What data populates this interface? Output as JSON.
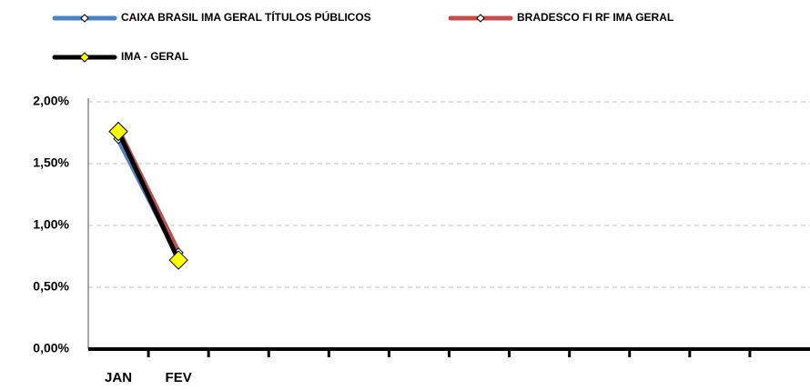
{
  "chart_data": {
    "type": "line",
    "categories": [
      "JAN",
      "FEV",
      null,
      null,
      null,
      null,
      null,
      null,
      null,
      null,
      null,
      null
    ],
    "series": [
      {
        "name": "CAIXA BRASIL IMA GERAL TÍTULOS PÚBLICOS",
        "color": "#4f81bd",
        "marker_color": "#ffffff",
        "values": [
          1.7,
          0.75,
          null,
          null,
          null,
          null,
          null,
          null,
          null,
          null,
          null,
          null
        ]
      },
      {
        "name": "BRADESCO FI RF IMA GERAL",
        "color": "#c0504d",
        "marker_color": "#ffffff",
        "values": [
          1.77,
          0.78,
          null,
          null,
          null,
          null,
          null,
          null,
          null,
          null,
          null,
          null
        ]
      },
      {
        "name": "IMA - GERAL",
        "color": "#000000",
        "marker_color": "#ffff00",
        "values": [
          1.76,
          0.72,
          null,
          null,
          null,
          null,
          null,
          null,
          null,
          null,
          null,
          null
        ]
      }
    ],
    "ylim": [
      0,
      2
    ],
    "yticks": [
      {
        "value": 0,
        "label": "0,00%"
      },
      {
        "value": 0.5,
        "label": "0,50%"
      },
      {
        "value": 1,
        "label": "1,00%"
      },
      {
        "value": 1.5,
        "label": "1,50%"
      },
      {
        "value": 2,
        "label": "2,00%"
      }
    ],
    "grid": true,
    "legend": "top"
  }
}
